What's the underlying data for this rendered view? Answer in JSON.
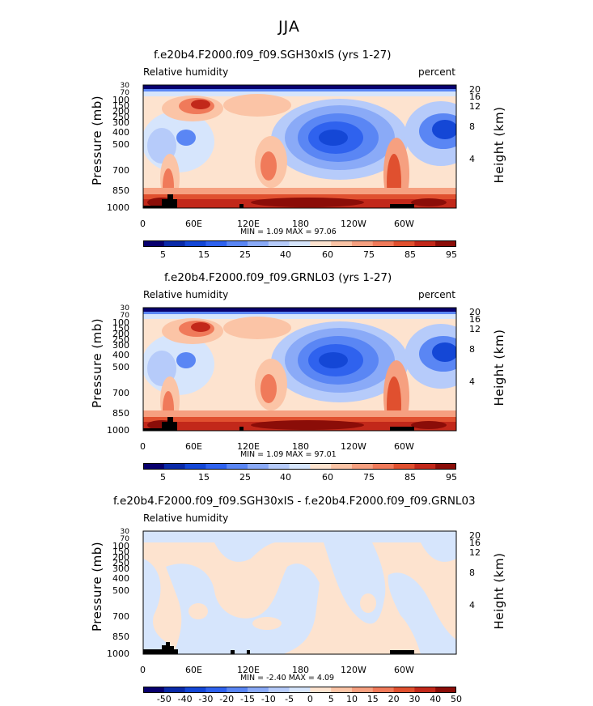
{
  "figure": {
    "season": "JJA"
  },
  "colors": {
    "rh_levels": [
      "#08006e",
      "#0a2aa8",
      "#1447d6",
      "#2f62ee",
      "#5a86f4",
      "#8aaaf7",
      "#b6cbfa",
      "#d6e5fc",
      "#fde3cf",
      "#fbc4a6",
      "#f6a080",
      "#f07a5a",
      "#e0502f",
      "#c2281a",
      "#8b0d08"
    ],
    "diff_levels": [
      "#08006e",
      "#0a2aa8",
      "#1447d6",
      "#2f62ee",
      "#5a86f4",
      "#8aaaf7",
      "#b6cbfa",
      "#d6e5fc",
      "#fde3cf",
      "#fbc4a6",
      "#f6a080",
      "#f07a5a",
      "#e0502f",
      "#c2281a",
      "#8b0d08"
    ],
    "terrain": "#000000"
  },
  "chart_data": [
    {
      "type": "heatmap",
      "title": "f.e20b4.F2000.f09_f09.SGH30xIS (yrs 1-27)",
      "left_label": "Relative humidity",
      "right_label": "percent",
      "ylabel": "Pressure (mb)",
      "ylabel_right": "Height (km)",
      "xticks": [
        "0",
        "60E",
        "120E",
        "180",
        "120W",
        "60W"
      ],
      "yticks": [
        "30",
        "50",
        "70",
        "100",
        "150",
        "200",
        "250",
        "300",
        "400",
        "500",
        "700",
        "850",
        "1000"
      ],
      "height_ticks": [
        "20",
        "16",
        "12",
        "8",
        "4"
      ],
      "min_max": "MIN =    1.09   MAX =   97.06",
      "colorbar_labels": [
        "5",
        "15",
        "25",
        "40",
        "60",
        "75",
        "85",
        "95"
      ],
      "ylim": [
        30,
        1000
      ],
      "xlim": [
        0,
        360
      ],
      "min": 1.09,
      "max": 97.06
    },
    {
      "type": "heatmap",
      "title": "f.e20b4.F2000.f09_f09.GRNL03 (yrs 1-27)",
      "left_label": "Relative humidity",
      "right_label": "percent",
      "ylabel": "Pressure (mb)",
      "ylabel_right": "Height (km)",
      "xticks": [
        "0",
        "60E",
        "120E",
        "180",
        "120W",
        "60W"
      ],
      "yticks": [
        "30",
        "50",
        "70",
        "100",
        "150",
        "200",
        "250",
        "300",
        "400",
        "500",
        "700",
        "850",
        "1000"
      ],
      "height_ticks": [
        "20",
        "16",
        "12",
        "8",
        "4"
      ],
      "min_max": "MIN =    1.09   MAX =   97.01",
      "colorbar_labels": [
        "5",
        "15",
        "25",
        "40",
        "60",
        "75",
        "85",
        "95"
      ],
      "ylim": [
        30,
        1000
      ],
      "xlim": [
        0,
        360
      ],
      "min": 1.09,
      "max": 97.01
    },
    {
      "type": "heatmap",
      "title": "f.e20b4.F2000.f09_f09.SGH30xIS - f.e20b4.F2000.f09_f09.GRNL03",
      "left_label": "Relative humidity",
      "right_label": "",
      "ylabel": "Pressure (mb)",
      "ylabel_right": "Height (km)",
      "xticks": [
        "0",
        "60E",
        "120E",
        "180",
        "120W",
        "60W"
      ],
      "yticks": [
        "30",
        "50",
        "70",
        "100",
        "150",
        "200",
        "250",
        "300",
        "400",
        "500",
        "700",
        "850",
        "1000"
      ],
      "height_ticks": [
        "20",
        "16",
        "12",
        "8",
        "4"
      ],
      "min_max": "MIN =   -2.40   MAX =    4.09",
      "colorbar_labels": [
        "-50",
        "-40",
        "-30",
        "-20",
        "-15",
        "-10",
        "-5",
        "0",
        "5",
        "10",
        "15",
        "20",
        "30",
        "40",
        "50"
      ],
      "ylim": [
        30,
        1000
      ],
      "xlim": [
        0,
        360
      ],
      "min": -2.4,
      "max": 4.09
    }
  ]
}
